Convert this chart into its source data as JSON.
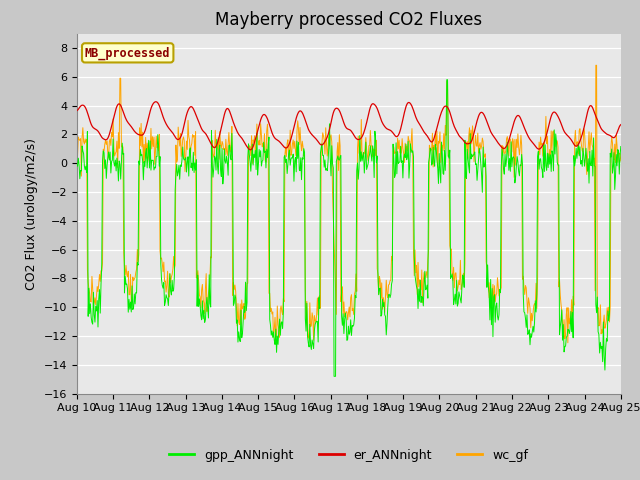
{
  "title": "Mayberry processed CO2 Fluxes",
  "ylabel": "CO2 Flux (urology/m2/s)",
  "ylim": [
    -16,
    9
  ],
  "yticks": [
    -16,
    -14,
    -12,
    -10,
    -8,
    -6,
    -4,
    -2,
    0,
    2,
    4,
    6,
    8
  ],
  "xtick_labels": [
    "Aug 10",
    "Aug 11",
    "Aug 12",
    "Aug 13",
    "Aug 14",
    "Aug 15",
    "Aug 16",
    "Aug 17",
    "Aug 18",
    "Aug 19",
    "Aug 20",
    "Aug 21",
    "Aug 22",
    "Aug 23",
    "Aug 24",
    "Aug 25"
  ],
  "fig_bg_color": "#c8c8c8",
  "axes_bg_color": "#e8e8e8",
  "grid_color": "#ffffff",
  "legend_label": "MB_processed",
  "legend_text_color": "#8b0000",
  "legend_bg": "#ffffcc",
  "legend_border": "#b8a000",
  "line_green": "#00ee00",
  "line_red": "#dd0000",
  "line_orange": "#ffa500",
  "legend_entries": [
    "gpp_ANNnight",
    "er_ANNnight",
    "wc_gf"
  ],
  "legend_colors": [
    "#00ee00",
    "#dd0000",
    "#ffa500"
  ],
  "title_fontsize": 12,
  "axis_label_fontsize": 9,
  "tick_fontsize": 8,
  "n_days": 15,
  "n_per_day": 48
}
